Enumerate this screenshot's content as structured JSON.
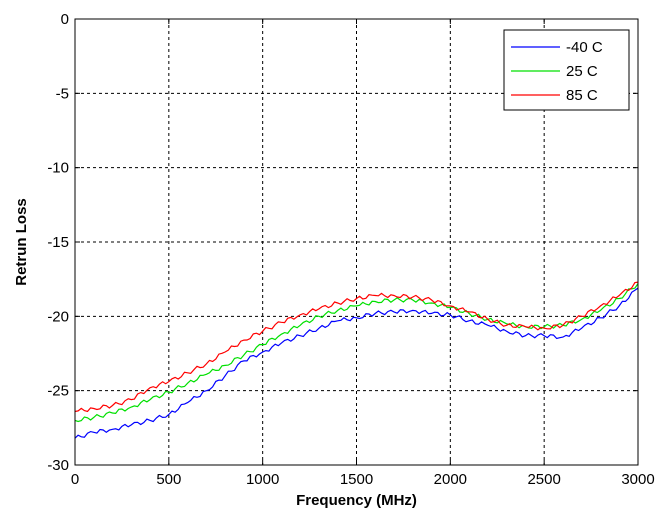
{
  "chart_data": {
    "type": "line",
    "xlabel": "Frequency (MHz)",
    "ylabel": "Retrun Loss",
    "xlim": [
      0,
      3000
    ],
    "ylim": [
      -30,
      0
    ],
    "xticks": [
      0,
      500,
      1000,
      1500,
      2000,
      2500,
      3000
    ],
    "yticks": [
      0,
      -5,
      -10,
      -15,
      -20,
      -25,
      -30
    ],
    "grid": true,
    "legend_position": "top-right",
    "x": [
      0,
      100,
      200,
      300,
      400,
      500,
      600,
      700,
      800,
      900,
      1000,
      1100,
      1200,
      1300,
      1400,
      1500,
      1600,
      1700,
      1800,
      1900,
      2000,
      2100,
      2200,
      2300,
      2400,
      2500,
      2600,
      2700,
      2800,
      2900,
      3000
    ],
    "series": [
      {
        "name": "-40 C",
        "color": "#0000ff",
        "values": [
          -28.2,
          -27.8,
          -27.6,
          -27.3,
          -27.0,
          -26.6,
          -25.8,
          -25.0,
          -24.0,
          -23.0,
          -22.4,
          -21.8,
          -21.3,
          -20.8,
          -20.3,
          -20.1,
          -19.8,
          -19.7,
          -19.6,
          -19.8,
          -19.9,
          -20.3,
          -20.6,
          -21.0,
          -21.3,
          -21.3,
          -21.4,
          -20.8,
          -20.1,
          -19.3,
          -18.1
        ]
      },
      {
        "name": "25 C",
        "color": "#00e000",
        "values": [
          -27.0,
          -26.8,
          -26.5,
          -26.1,
          -25.6,
          -25.1,
          -24.5,
          -23.9,
          -23.3,
          -22.6,
          -21.9,
          -21.2,
          -20.6,
          -20.0,
          -19.6,
          -19.3,
          -19.0,
          -18.9,
          -18.9,
          -19.1,
          -19.4,
          -19.8,
          -20.2,
          -20.5,
          -20.7,
          -20.7,
          -20.6,
          -20.2,
          -19.6,
          -18.8,
          -17.8
        ]
      },
      {
        "name": "85 C",
        "color": "#ff0000",
        "values": [
          -26.4,
          -26.2,
          -26.0,
          -25.6,
          -24.8,
          -24.4,
          -23.8,
          -23.2,
          -22.4,
          -21.6,
          -21.0,
          -20.4,
          -19.9,
          -19.5,
          -19.1,
          -18.8,
          -18.6,
          -18.6,
          -18.7,
          -18.9,
          -19.3,
          -19.7,
          -20.2,
          -20.6,
          -20.7,
          -20.8,
          -20.6,
          -20.0,
          -19.3,
          -18.6,
          -17.7
        ]
      }
    ]
  }
}
